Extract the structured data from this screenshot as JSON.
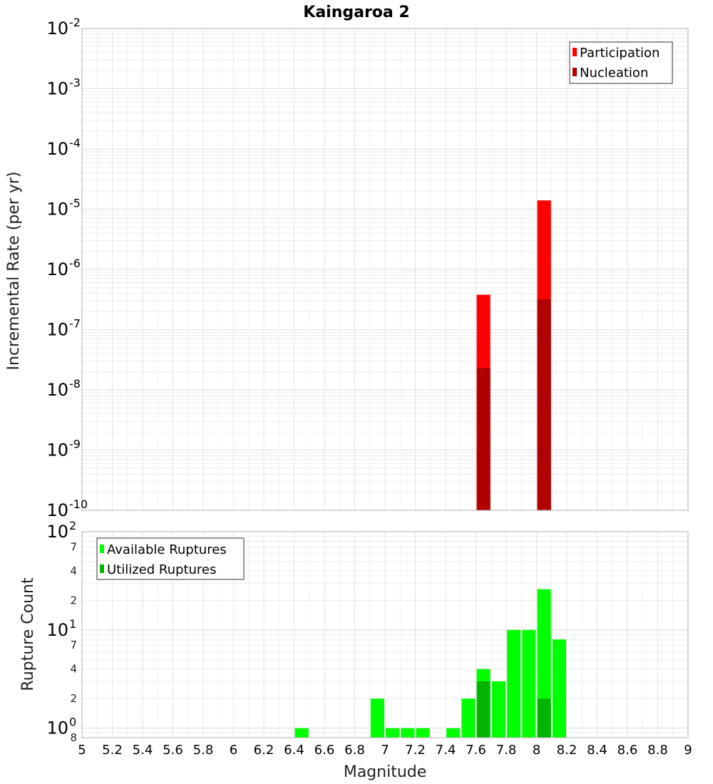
{
  "chart_data": [
    {
      "type": "bar",
      "title": "Kaingaroa 2",
      "ylabel": "Incremental Rate (per yr)",
      "y_scale": "log",
      "ylim": [
        1e-10,
        0.01
      ],
      "xlim": [
        5,
        9
      ],
      "y_ticks": [
        {
          "base": "10",
          "exp": "-2"
        },
        {
          "base": "10",
          "exp": "-3"
        },
        {
          "base": "10",
          "exp": "-4"
        },
        {
          "base": "10",
          "exp": "-5"
        },
        {
          "base": "10",
          "exp": "-6"
        },
        {
          "base": "10",
          "exp": "-7"
        },
        {
          "base": "10",
          "exp": "-8"
        },
        {
          "base": "10",
          "exp": "-9"
        },
        {
          "base": "10",
          "exp": "-10"
        }
      ],
      "series": [
        {
          "name": "Participation",
          "color": "#ff0000",
          "x": [
            7.65,
            8.05
          ],
          "values": [
            3.8e-07,
            1.4e-05
          ]
        },
        {
          "name": "Nucleation",
          "color": "#b00000",
          "x": [
            7.65,
            8.05
          ],
          "values": [
            2.3e-08,
            3.2e-07
          ]
        }
      ],
      "legend_position": "top-right",
      "grid": true
    },
    {
      "type": "bar",
      "ylabel": "Rupture Count",
      "xlabel": "Magnitude",
      "y_scale": "log",
      "ylim": [
        0.8,
        100
      ],
      "xlim": [
        5,
        9
      ],
      "x_ticks": [
        "5",
        "5.2",
        "5.4",
        "5.6",
        "5.8",
        "6",
        "6.2",
        "6.4",
        "6.6",
        "6.8",
        "7",
        "7.2",
        "7.4",
        "7.6",
        "7.8",
        "8",
        "8.2",
        "8.4",
        "8.6",
        "8.8",
        "9"
      ],
      "y_major_ticks": [
        {
          "base": "10",
          "exp": "2"
        },
        {
          "base": "10",
          "exp": "1"
        },
        {
          "base": "10",
          "exp": "0"
        }
      ],
      "y_minor_ticks": [
        "7",
        "4",
        "2",
        "7",
        "4",
        "2",
        "8"
      ],
      "series": [
        {
          "name": "Available Ruptures",
          "color": "#00ff00",
          "x": [
            6.45,
            6.95,
            7.05,
            7.15,
            7.25,
            7.45,
            7.55,
            7.65,
            7.75,
            7.85,
            7.95,
            8.05,
            8.15
          ],
          "values": [
            1,
            2,
            1,
            1,
            1,
            1,
            2,
            4,
            3,
            10,
            10,
            26,
            8
          ]
        },
        {
          "name": "Utilized Ruptures",
          "color": "#00b400",
          "x": [
            7.65,
            8.05
          ],
          "values": [
            3,
            2
          ]
        }
      ],
      "legend_position": "top-left",
      "grid": true
    }
  ]
}
